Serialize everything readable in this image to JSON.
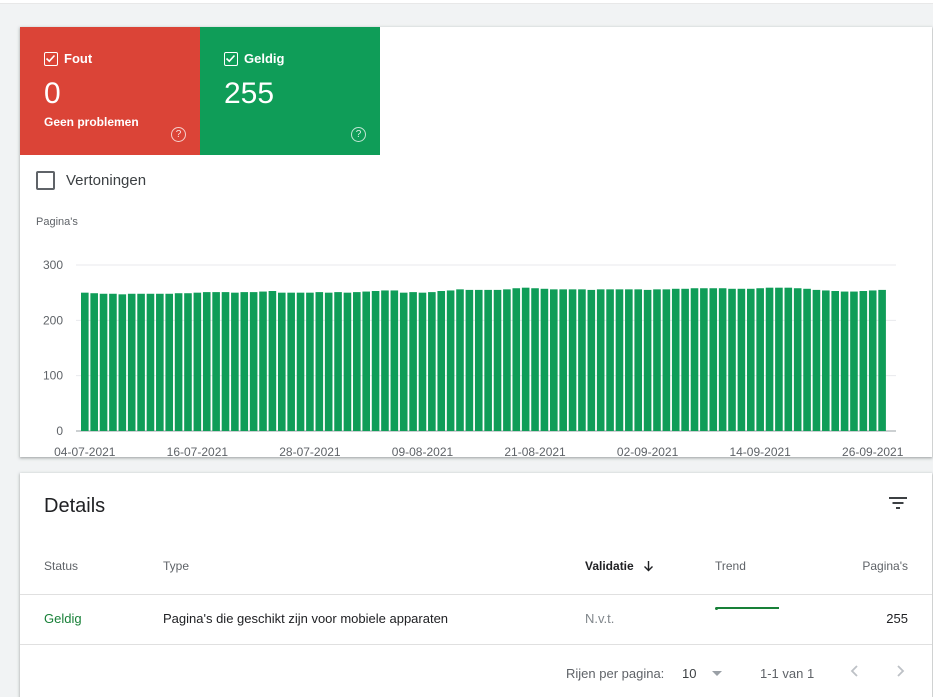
{
  "tiles": [
    {
      "label": "Fout",
      "value": "0",
      "subtitle": "Geen problemen",
      "color": "#db4437",
      "checked": true
    },
    {
      "label": "Geldig",
      "value": "255",
      "subtitle": "",
      "color": "#0f9d58",
      "checked": true
    }
  ],
  "impressions_label": "Vertoningen",
  "chart_data": {
    "type": "bar",
    "ylabel": "Pagina's",
    "ylim": [
      0,
      300
    ],
    "yticks": [
      0,
      100,
      200,
      300
    ],
    "xtick_labels": [
      "04-07-2021",
      "16-07-2021",
      "28-07-2021",
      "09-08-2021",
      "21-08-2021",
      "02-09-2021",
      "14-09-2021",
      "26-09-2021"
    ],
    "start_date": "2021-07-04",
    "color": "#0f9d58",
    "values": [
      250,
      249,
      248,
      248,
      247,
      248,
      248,
      248,
      248,
      248,
      249,
      249,
      250,
      251,
      251,
      251,
      250,
      251,
      251,
      252,
      253,
      250,
      250,
      250,
      250,
      251,
      250,
      251,
      250,
      251,
      252,
      253,
      254,
      254,
      250,
      251,
      250,
      251,
      253,
      254,
      256,
      255,
      255,
      255,
      255,
      256,
      258,
      259,
      258,
      257,
      256,
      256,
      256,
      256,
      255,
      256,
      256,
      256,
      256,
      256,
      255,
      256,
      256,
      257,
      257,
      258,
      258,
      258,
      258,
      257,
      257,
      257,
      258,
      259,
      259,
      259,
      258,
      257,
      255,
      254,
      253,
      252,
      252,
      253,
      254,
      255
    ]
  },
  "details": {
    "title": "Details",
    "columns": {
      "status": "Status",
      "type": "Type",
      "validation": "Validatie",
      "trend": "Trend",
      "pages": "Pagina's"
    },
    "row": {
      "status": "Geldig",
      "type": "Pagina's die geschikt zijn voor mobiele apparaten",
      "validation": "N.v.t.",
      "pages": "255"
    },
    "pagination": {
      "rows_per_page_label": "Rijen per pagina:",
      "rows_per_page": "10",
      "range": "1-1 van 1"
    }
  }
}
